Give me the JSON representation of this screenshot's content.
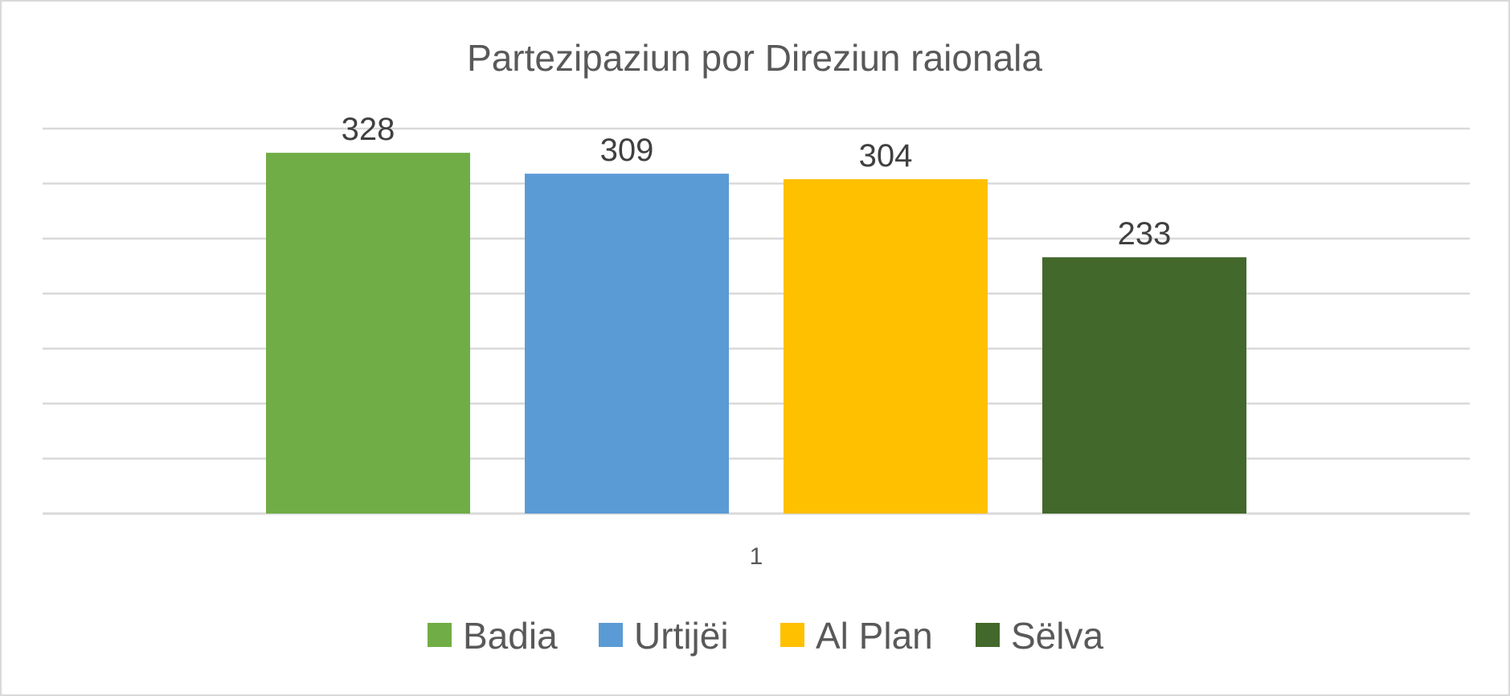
{
  "chart_data": {
    "type": "bar",
    "title": "Partezipaziun por Direziun raionala",
    "categories": [
      "1"
    ],
    "series": [
      {
        "name": "Badia",
        "values": [
          328
        ],
        "color": "#70AD47"
      },
      {
        "name": "Urtijëi",
        "values": [
          309
        ],
        "color": "#5B9BD5"
      },
      {
        "name": "Al Plan",
        "values": [
          304
        ],
        "color": "#FFC000"
      },
      {
        "name": "Sëlva",
        "values": [
          233
        ],
        "color": "#43682B"
      }
    ],
    "ylim": [
      0,
      350
    ],
    "y_gridline_step": 50,
    "y_axis_labels_shown": false,
    "grid": true,
    "data_labels": true,
    "legend_position": "bottom",
    "gridline_color": "#D9D9D9"
  }
}
